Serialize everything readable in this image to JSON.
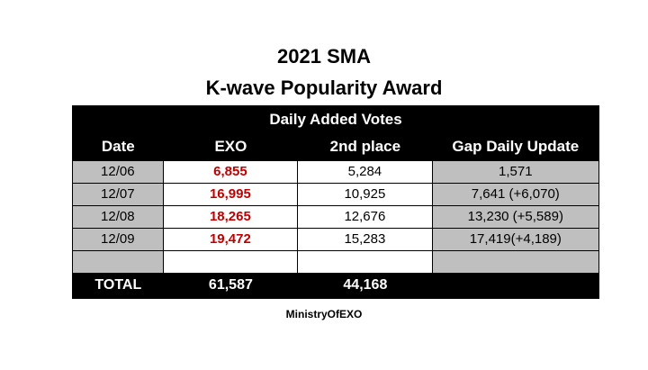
{
  "title_line1": "2021 SMA",
  "title_line2": "K-wave Popularity Award",
  "table": {
    "group_header": "Daily Added Votes",
    "columns": [
      "Date",
      "EXO",
      "2nd place",
      "Gap Daily Update"
    ],
    "rows": [
      {
        "date": "12/06",
        "exo": "6,855",
        "second": "5,284",
        "gap": "1,571"
      },
      {
        "date": "12/07",
        "exo": "16,995",
        "second": "10,925",
        "gap": "7,641 (+6,070)"
      },
      {
        "date": "12/08",
        "exo": "18,265",
        "second": "12,676",
        "gap": "13,230 (+5,589)"
      },
      {
        "date": "12/09",
        "exo": "19,472",
        "second": "15,283",
        "gap": "17,419(+4,189)"
      },
      {
        "date": "",
        "exo": "",
        "second": "",
        "gap": ""
      }
    ],
    "total": {
      "label": "TOTAL",
      "exo": "61,587",
      "second": "44,168",
      "gap": ""
    }
  },
  "footer": "MinistryOfEXO",
  "colors": {
    "highlight_red": "#c00000",
    "header_black": "#000000",
    "row_gray": "#bfbfbf"
  }
}
